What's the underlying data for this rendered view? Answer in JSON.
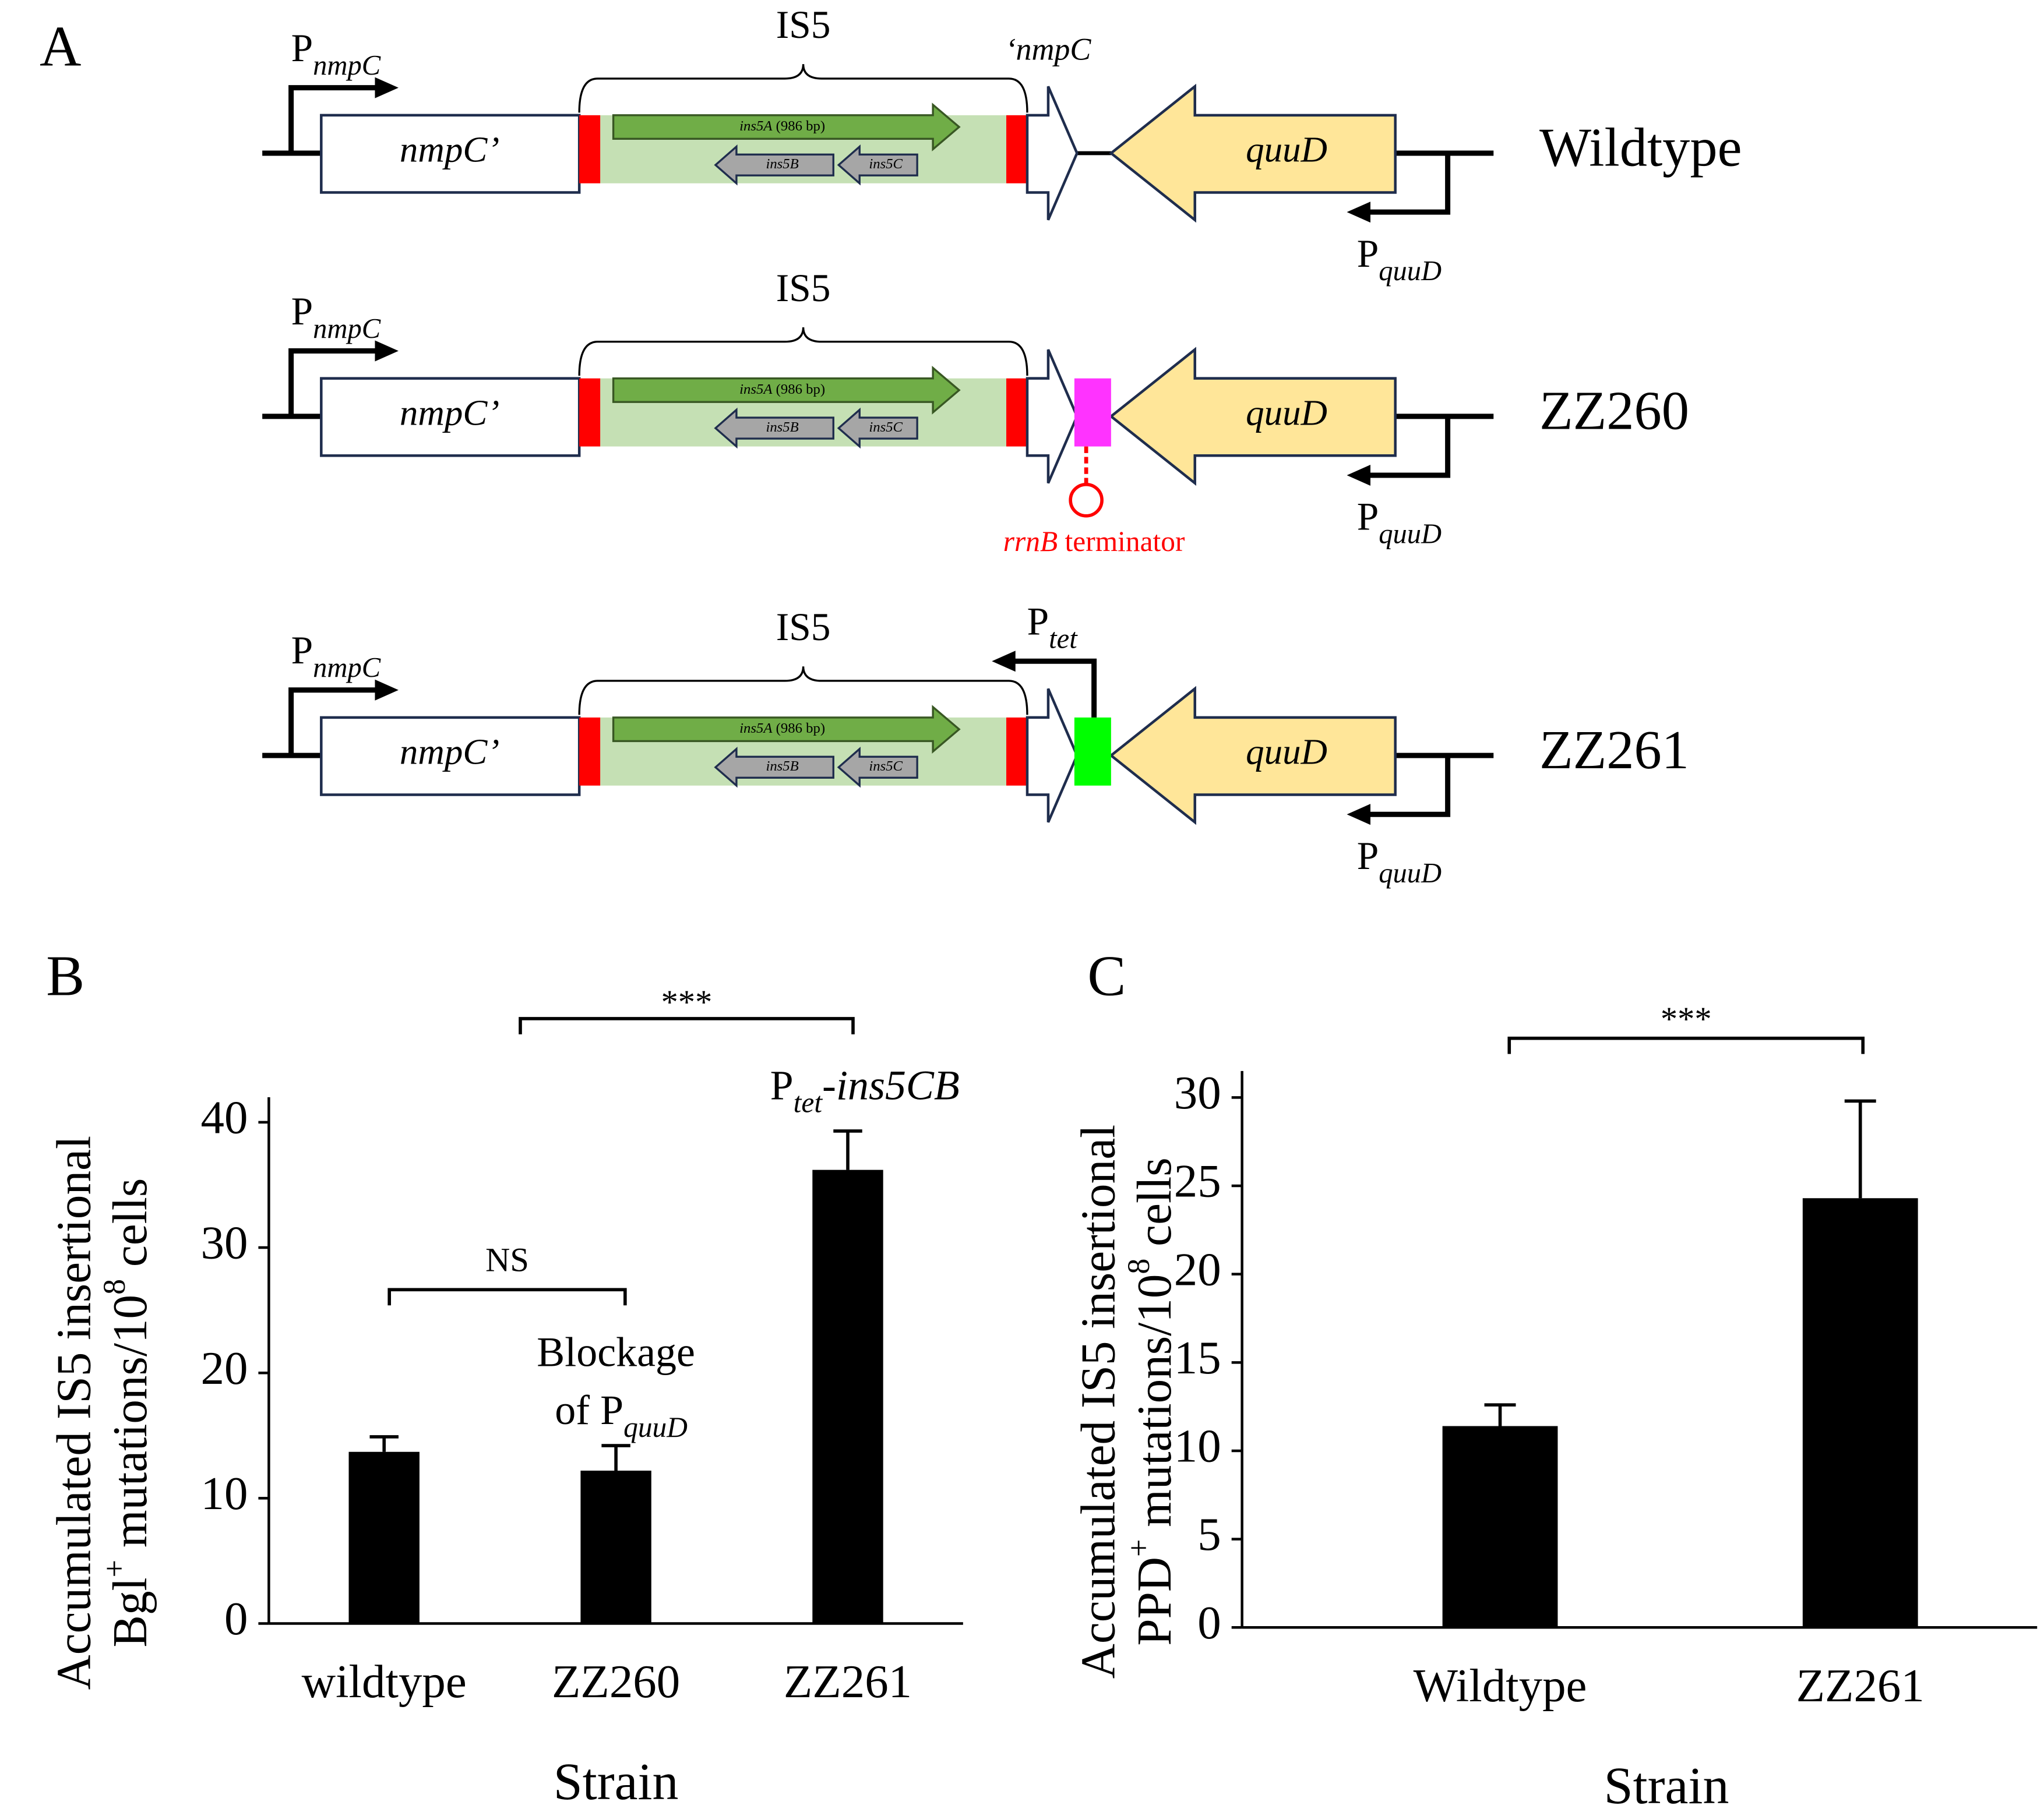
{
  "diagram": {
    "panel_label": "A",
    "rows": [
      {
        "strain": "Wildtype",
        "promoter": {
          "main": "P",
          "sub": "nmpC"
        },
        "is_label": "IS5",
        "truncated_gene": "nmpC’",
        "partial_label": "‘nmpC",
        "ins5A": "ins5A",
        "ins5A_size": " (986 bp)",
        "ins5B": "ins5B",
        "ins5C": "ins5C",
        "gene": "quuD",
        "gene_promoter": {
          "main": "P",
          "sub": "quuD"
        }
      },
      {
        "strain": "ZZ260",
        "promoter": {
          "main": "P",
          "sub": "nmpC"
        },
        "is_label": "IS5",
        "truncated_gene": "nmpC’",
        "ins5A": "ins5A",
        "ins5A_size": " (986 bp)",
        "ins5B": "ins5B",
        "ins5C": "ins5C",
        "gene": "quuD",
        "gene_promoter": {
          "main": "P",
          "sub": "quuD"
        },
        "terminator_label": {
          "italic": "rrnB",
          "rest": " terminator"
        }
      },
      {
        "strain": "ZZ261",
        "promoter": {
          "main": "P",
          "sub": "nmpC"
        },
        "is_label": "IS5",
        "truncated_gene": "nmpC’",
        "ins5A": "ins5A",
        "ins5A_size": " (986 bp)",
        "ins5B": "ins5B",
        "ins5C": "ins5C",
        "gene": "quuD",
        "gene_promoter": {
          "main": "P",
          "sub": "quuD"
        },
        "insert_promoter": {
          "main": "P",
          "sub": "tet"
        }
      }
    ]
  },
  "chart_data": [
    {
      "type": "bar",
      "panel_label": "B",
      "ylabel": [
        [
          {
            "text": "Accumulated IS5 insertional"
          }
        ],
        [
          {
            "text": "Bgl"
          },
          {
            "text": "+",
            "sup": true
          },
          {
            "text": " mutations/10"
          },
          {
            "text": "8",
            "sup": true
          },
          {
            "text": " cells"
          }
        ]
      ],
      "xlabel": "Strain",
      "categories": [
        "wildtype",
        "ZZ260",
        "ZZ261"
      ],
      "values": [
        13.7,
        12.2,
        36.2
      ],
      "errors": [
        1.2,
        2.0,
        3.1
      ],
      "color": "#000000",
      "ylim": [
        0,
        42
      ],
      "yticks": [
        0,
        10,
        20,
        30,
        40
      ],
      "annotations": {
        "ns": "NS",
        "sig": "***",
        "blockage": {
          "line1": "Blockage",
          "line2": "of P",
          "sub": "quuD"
        },
        "ptet": {
          "main": "P",
          "sub": "tet",
          "rest": "-",
          "italic": "ins5CB"
        }
      }
    },
    {
      "type": "bar",
      "panel_label": "C",
      "ylabel": [
        [
          {
            "text": "Accumulated IS5 insertional"
          }
        ],
        [
          {
            "text": "PPD"
          },
          {
            "text": "+",
            "sup": true
          },
          {
            "text": " mutations/10"
          },
          {
            "text": "8",
            "sup": true
          },
          {
            "text": " cells"
          }
        ]
      ],
      "xlabel": "Strain",
      "categories": [
        "Wildtype",
        "ZZ261"
      ],
      "values": [
        11.4,
        24.3
      ],
      "errors": [
        1.2,
        5.5
      ],
      "color": "#000000",
      "ylim": [
        0,
        31.5
      ],
      "yticks": [
        0,
        5,
        10,
        15,
        20,
        25,
        30
      ],
      "annotations": {
        "sig": "***"
      }
    }
  ]
}
